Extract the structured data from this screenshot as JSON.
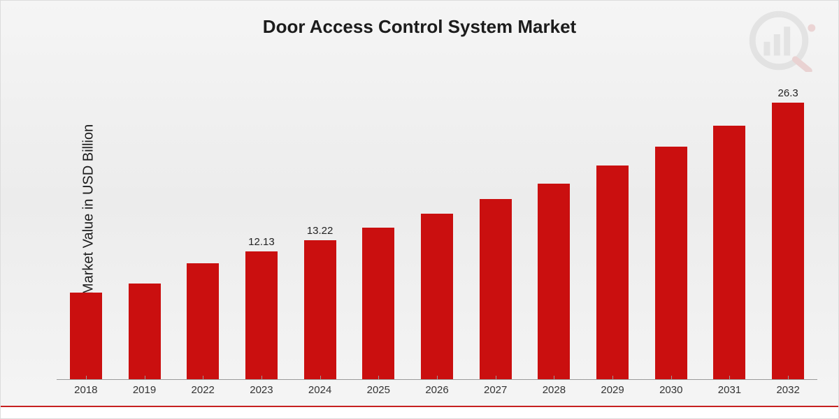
{
  "chart": {
    "type": "bar",
    "title": "Door Access Control System Market",
    "y_label": "Market Value in USD Billion",
    "categories": [
      "2018",
      "2019",
      "2022",
      "2023",
      "2024",
      "2025",
      "2026",
      "2027",
      "2028",
      "2029",
      "2030",
      "2031",
      "2032"
    ],
    "values": [
      8.2,
      9.1,
      11.0,
      12.13,
      13.22,
      14.4,
      15.7,
      17.1,
      18.6,
      20.3,
      22.1,
      24.1,
      26.3
    ],
    "value_labels": [
      "",
      "",
      "",
      "12.13",
      "13.22",
      "",
      "",
      "",
      "",
      "",
      "",
      "",
      "26.3"
    ],
    "bar_color": "#ca0f0f",
    "bar_width_ratio": 0.55,
    "ylim": [
      0,
      28
    ],
    "background_gradient": [
      "#f5f5f5",
      "#ececec",
      "#f5f5f5"
    ],
    "axis_color": "#9b9b9b",
    "title_fontsize": 26,
    "ylabel_fontsize": 20,
    "tick_fontsize": 15,
    "value_label_fontsize": 15,
    "value_label_color": "#222222",
    "footer_border_color": "#c62020",
    "footer_bg_color": "#ffffff",
    "watermark_color": "#8a8a8a"
  }
}
